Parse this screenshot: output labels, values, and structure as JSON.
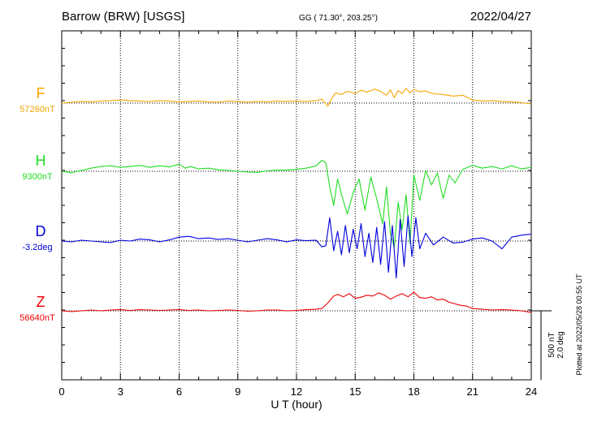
{
  "header": {
    "station": "Barrow (BRW)  [USGS]",
    "coords": "GG ( 71.30°, 203.25°)",
    "date": "2022/04/27"
  },
  "footer": {
    "plotted_at": "Plotted at 2022/05/28 00:55 UT"
  },
  "scale_bar": {
    "nt": "500 nT",
    "deg": "2.0 deg"
  },
  "chart_data": {
    "type": "line",
    "xlabel": "U T (hour)",
    "xlim": [
      0,
      24
    ],
    "xticks": [
      0,
      3,
      6,
      9,
      12,
      15,
      18,
      21,
      24
    ],
    "x_tick_labels": [
      "0",
      "3",
      "6",
      "9",
      "12",
      "15",
      "18",
      "21",
      "24"
    ],
    "grid": true,
    "series": [
      {
        "name": "F",
        "baseline": "57260nT",
        "color": "#f5a500",
        "x": [
          0,
          0.5,
          1,
          1.5,
          2,
          2.5,
          3,
          3.5,
          4,
          4.5,
          5,
          5.5,
          6,
          6.5,
          7,
          7.5,
          8,
          8.5,
          9,
          9.5,
          10,
          10.5,
          11,
          11.5,
          12,
          12.5,
          13,
          13.3,
          13.6,
          13.8,
          14,
          14.3,
          14.6,
          15,
          15.3,
          15.6,
          16,
          16.3,
          16.6,
          16.8,
          17,
          17.2,
          17.4,
          17.6,
          17.8,
          18,
          18.3,
          18.6,
          19,
          19.5,
          20,
          20.5,
          21,
          21.5,
          22,
          22.5,
          23,
          23.5,
          24
        ],
        "values": [
          0,
          2,
          4,
          3,
          5,
          6,
          8,
          6,
          5,
          4,
          6,
          5,
          3,
          4,
          5,
          3,
          2,
          5,
          4,
          2,
          4,
          3,
          5,
          4,
          5,
          4,
          6,
          10,
          -8,
          12,
          26,
          22,
          30,
          25,
          33,
          28,
          36,
          30,
          20,
          34,
          14,
          32,
          24,
          38,
          26,
          35,
          29,
          31,
          24,
          22,
          18,
          20,
          8,
          5,
          6,
          4,
          3,
          1,
          -2
        ]
      },
      {
        "name": "H",
        "baseline": "9300nT",
        "color": "#22dd22",
        "x": [
          0,
          0.5,
          1,
          1.5,
          2,
          2.5,
          3,
          3.5,
          4,
          4.5,
          5,
          5.5,
          6,
          6.3,
          6.6,
          7,
          7.5,
          8,
          8.5,
          9,
          9.5,
          10,
          10.5,
          11,
          11.5,
          12,
          12.5,
          13,
          13.3,
          13.5,
          13.7,
          13.9,
          14.1,
          14.3,
          14.6,
          14.9,
          15.2,
          15.5,
          15.8,
          16.1,
          16.4,
          16.6,
          16.8,
          17,
          17.2,
          17.4,
          17.6,
          17.8,
          18,
          18.3,
          18.6,
          18.9,
          19.2,
          19.5,
          19.8,
          20.1,
          20.5,
          21,
          21.5,
          22,
          22.5,
          23,
          23.5,
          24
        ],
        "values": [
          0,
          -4,
          2,
          8,
          12,
          14,
          10,
          12,
          15,
          10,
          14,
          11,
          18,
          8,
          12,
          6,
          8,
          4,
          2,
          0,
          -2,
          -3,
          1,
          3,
          3,
          5,
          8,
          14,
          28,
          22,
          -40,
          -88,
          -20,
          -60,
          -110,
          -55,
          -20,
          -100,
          -15,
          -70,
          -135,
          -40,
          -160,
          -195,
          -80,
          -150,
          -60,
          -185,
          -10,
          -75,
          2,
          -35,
          -5,
          -70,
          -10,
          -30,
          5,
          15,
          8,
          12,
          6,
          14,
          6,
          10
        ]
      },
      {
        "name": "D",
        "baseline": "-3.2deg",
        "color": "#0000dd",
        "x": [
          0,
          0.5,
          1,
          1.5,
          2,
          2.5,
          3,
          3.5,
          4,
          4.5,
          5,
          5.5,
          6,
          6.5,
          7,
          7.5,
          8,
          8.5,
          9,
          9.5,
          10,
          10.5,
          11,
          11.5,
          12,
          12.5,
          13,
          13.3,
          13.5,
          13.7,
          13.9,
          14.1,
          14.3,
          14.5,
          14.7,
          14.9,
          15.1,
          15.3,
          15.5,
          15.7,
          15.9,
          16.1,
          16.3,
          16.5,
          16.7,
          16.9,
          17.1,
          17.3,
          17.5,
          17.7,
          17.9,
          18.1,
          18.3,
          18.6,
          19,
          19.5,
          20,
          20.5,
          21,
          21.5,
          22,
          22.5,
          23,
          23.5,
          24
        ],
        "values": [
          0,
          -2,
          2,
          0,
          -2,
          -4,
          2,
          0,
          5,
          3,
          -2,
          3,
          10,
          12,
          6,
          8,
          4,
          6,
          2,
          -2,
          2,
          6,
          3,
          -2,
          3,
          1,
          2,
          -15,
          -12,
          60,
          -25,
          25,
          -35,
          40,
          -30,
          30,
          -20,
          45,
          -40,
          20,
          -55,
          35,
          -60,
          50,
          -80,
          40,
          -95,
          55,
          -65,
          65,
          -40,
          60,
          -20,
          20,
          -10,
          10,
          -5,
          -3,
          5,
          8,
          0,
          -20,
          10,
          15,
          18
        ]
      },
      {
        "name": "Z",
        "baseline": "56640nT",
        "color": "#ee0000",
        "x": [
          0,
          0.5,
          1,
          1.5,
          2,
          2.5,
          3,
          3.5,
          4,
          4.5,
          5,
          5.5,
          6,
          6.5,
          7,
          7.5,
          8,
          8.5,
          9,
          9.5,
          10,
          10.5,
          11,
          11.5,
          12,
          12.5,
          13,
          13.3,
          13.6,
          13.9,
          14.1,
          14.4,
          14.7,
          15,
          15.3,
          15.6,
          15.9,
          16.2,
          16.5,
          16.8,
          17.1,
          17.4,
          17.7,
          18,
          18.3,
          18.6,
          18.9,
          19.2,
          19.5,
          19.8,
          20.1,
          20.4,
          20.7,
          21,
          21.5,
          22,
          22.5,
          23,
          23.5,
          24
        ],
        "values": [
          0,
          -2,
          0,
          2,
          0,
          2,
          3,
          1,
          3,
          2,
          1,
          2,
          3,
          1,
          2,
          0,
          1,
          2,
          1,
          -1,
          0,
          2,
          2,
          0,
          1,
          3,
          4,
          6,
          20,
          38,
          42,
          36,
          44,
          32,
          35,
          40,
          38,
          46,
          40,
          30,
          38,
          44,
          36,
          48,
          34,
          32,
          36,
          28,
          30,
          22,
          18,
          14,
          12,
          6,
          4,
          2,
          3,
          2,
          0,
          -4
        ]
      }
    ]
  }
}
